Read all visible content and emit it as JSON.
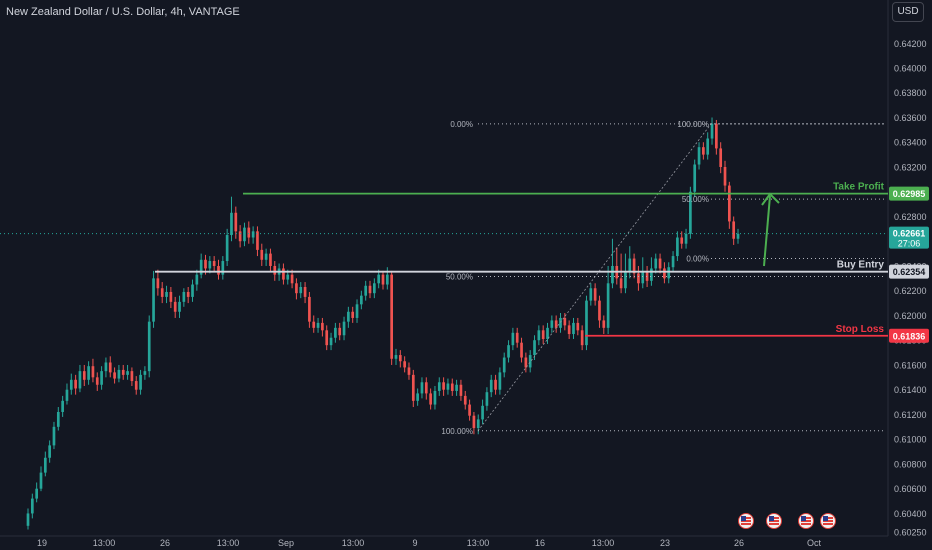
{
  "header": {
    "title": "New Zealand Dollar / U.S. Dollar, 4h, VANTAGE",
    "currency_button": "USD"
  },
  "chart_data": {
    "type": "candlestick",
    "title": "New Zealand Dollar / U.S. Dollar, 4h, VANTAGE",
    "ylim": [
      0.6025,
      0.6436
    ],
    "y_ticks": [
      "0.64200",
      "0.64000",
      "0.63800",
      "0.63600",
      "0.63400",
      "0.63200",
      "0.63000",
      "0.62800",
      "0.62600",
      "0.62400",
      "0.62200",
      "0.62000",
      "0.61800",
      "0.61600",
      "0.61400",
      "0.61200",
      "0.61000",
      "0.60800",
      "0.60600",
      "0.60400",
      "0.60250"
    ],
    "x_ticks": [
      "19",
      "13:00",
      "26",
      "13:00",
      "Sep",
      "13:00",
      "9",
      "13:00",
      "16",
      "13:00",
      "23",
      "13:00",
      "26",
      "Oct"
    ],
    "current_price": "0.62661",
    "countdown": "27:06",
    "levels": [
      {
        "name": "Take Profit",
        "price": "0.62985",
        "color": "#4caf50"
      },
      {
        "name": "Buy Entry",
        "price": "0.62354",
        "color": "#d1d4dc"
      },
      {
        "name": "Stop Loss",
        "price": "0.61836",
        "color": "#f23645"
      }
    ],
    "fib_retracements": [
      {
        "levels": [
          {
            "label": "100.00%",
            "price": 0.61068
          },
          {
            "label": "50.00%",
            "price": 0.62315
          },
          {
            "label": "0.00%",
            "price": 0.63548
          }
        ]
      },
      {
        "levels": [
          {
            "label": "100.00%",
            "price": 0.63548
          },
          {
            "label": "50.00%",
            "price": 0.6294
          },
          {
            "label": "0.00%",
            "price": 0.6246
          }
        ]
      }
    ],
    "candles": [
      [
        0.603,
        0.604,
        0.6027,
        0.6044
      ],
      [
        0.604,
        0.6052,
        0.6036,
        0.6056
      ],
      [
        0.6052,
        0.606,
        0.6049,
        0.6065
      ],
      [
        0.606,
        0.6073,
        0.6058,
        0.6078
      ],
      [
        0.6073,
        0.6085,
        0.607,
        0.609
      ],
      [
        0.6085,
        0.6095,
        0.6081,
        0.6099
      ],
      [
        0.6095,
        0.611,
        0.6092,
        0.6114
      ],
      [
        0.611,
        0.6122,
        0.6107,
        0.6126
      ],
      [
        0.6122,
        0.6131,
        0.6118,
        0.6135
      ],
      [
        0.6131,
        0.614,
        0.6128,
        0.6145
      ],
      [
        0.614,
        0.6148,
        0.6136,
        0.6153
      ],
      [
        0.6148,
        0.6141,
        0.6136,
        0.6152
      ],
      [
        0.6141,
        0.6155,
        0.6138,
        0.616
      ],
      [
        0.6155,
        0.6148,
        0.6143,
        0.616
      ],
      [
        0.6148,
        0.6159,
        0.6144,
        0.6163
      ],
      [
        0.6159,
        0.615,
        0.6146,
        0.6165
      ],
      [
        0.615,
        0.6144,
        0.6139,
        0.6154
      ],
      [
        0.6144,
        0.6155,
        0.614,
        0.6159
      ],
      [
        0.6155,
        0.6162,
        0.615,
        0.6166
      ],
      [
        0.6162,
        0.6154,
        0.615,
        0.6167
      ],
      [
        0.6154,
        0.6149,
        0.6145,
        0.6158
      ],
      [
        0.6149,
        0.6156,
        0.6146,
        0.616
      ],
      [
        0.6156,
        0.6152,
        0.6148,
        0.616
      ],
      [
        0.6152,
        0.6155,
        0.6148,
        0.616
      ],
      [
        0.6155,
        0.6147,
        0.6143,
        0.6158
      ],
      [
        0.6147,
        0.614,
        0.6136,
        0.6151
      ],
      [
        0.614,
        0.6152,
        0.6136,
        0.6156
      ],
      [
        0.6152,
        0.6155,
        0.6148,
        0.6159
      ],
      [
        0.6155,
        0.6195,
        0.615,
        0.62
      ],
      [
        0.6195,
        0.623,
        0.619,
        0.6236
      ],
      [
        0.623,
        0.6222,
        0.6216,
        0.6237
      ],
      [
        0.6222,
        0.6215,
        0.621,
        0.6227
      ],
      [
        0.6215,
        0.6219,
        0.621,
        0.6224
      ],
      [
        0.6219,
        0.6211,
        0.6206,
        0.6223
      ],
      [
        0.6211,
        0.6203,
        0.6198,
        0.6215
      ],
      [
        0.6203,
        0.6211,
        0.6198,
        0.6216
      ],
      [
        0.6211,
        0.6219,
        0.6207,
        0.6222
      ],
      [
        0.6219,
        0.6215,
        0.621,
        0.6223
      ],
      [
        0.6215,
        0.6225,
        0.6211,
        0.6229
      ],
      [
        0.6225,
        0.6233,
        0.622,
        0.6237
      ],
      [
        0.6233,
        0.6245,
        0.623,
        0.625
      ],
      [
        0.6245,
        0.6238,
        0.6233,
        0.6249
      ],
      [
        0.6238,
        0.6244,
        0.6234,
        0.6248
      ],
      [
        0.6244,
        0.624,
        0.6236,
        0.6248
      ],
      [
        0.624,
        0.6233,
        0.6229,
        0.6245
      ],
      [
        0.6233,
        0.6244,
        0.6229,
        0.6248
      ],
      [
        0.6244,
        0.6265,
        0.624,
        0.627
      ],
      [
        0.6265,
        0.6283,
        0.626,
        0.6296
      ],
      [
        0.6283,
        0.6268,
        0.6262,
        0.6288
      ],
      [
        0.6268,
        0.626,
        0.6255,
        0.6273
      ],
      [
        0.626,
        0.6271,
        0.6256,
        0.6275
      ],
      [
        0.6271,
        0.6263,
        0.6258,
        0.6276
      ],
      [
        0.6263,
        0.6268,
        0.6258,
        0.6272
      ],
      [
        0.6268,
        0.6253,
        0.6248,
        0.6272
      ],
      [
        0.6253,
        0.6245,
        0.624,
        0.6258
      ],
      [
        0.6245,
        0.625,
        0.624,
        0.6254
      ],
      [
        0.625,
        0.624,
        0.6235,
        0.6254
      ],
      [
        0.624,
        0.6233,
        0.6228,
        0.6244
      ],
      [
        0.6233,
        0.6238,
        0.6228,
        0.6242
      ],
      [
        0.6238,
        0.6229,
        0.6225,
        0.6242
      ],
      [
        0.6229,
        0.6233,
        0.6225,
        0.6237
      ],
      [
        0.6233,
        0.6226,
        0.6222,
        0.6237
      ],
      [
        0.6226,
        0.6218,
        0.6213,
        0.623
      ],
      [
        0.6218,
        0.6223,
        0.6214,
        0.6227
      ],
      [
        0.6223,
        0.6215,
        0.621,
        0.6227
      ],
      [
        0.6215,
        0.6195,
        0.619,
        0.6219
      ],
      [
        0.6195,
        0.619,
        0.6186,
        0.62
      ],
      [
        0.619,
        0.6194,
        0.6186,
        0.6198
      ],
      [
        0.6194,
        0.6188,
        0.6183,
        0.6198
      ],
      [
        0.6188,
        0.6176,
        0.6172,
        0.6192
      ],
      [
        0.6176,
        0.6182,
        0.6172,
        0.6186
      ],
      [
        0.6182,
        0.619,
        0.6178,
        0.6194
      ],
      [
        0.619,
        0.6184,
        0.618,
        0.6194
      ],
      [
        0.6184,
        0.6195,
        0.618,
        0.6199
      ],
      [
        0.6195,
        0.6203,
        0.619,
        0.6207
      ],
      [
        0.6203,
        0.6198,
        0.6194,
        0.6207
      ],
      [
        0.6198,
        0.6209,
        0.6194,
        0.6213
      ],
      [
        0.6209,
        0.6216,
        0.6205,
        0.622
      ],
      [
        0.6216,
        0.6224,
        0.6212,
        0.6228
      ],
      [
        0.6224,
        0.6218,
        0.6214,
        0.6228
      ],
      [
        0.6218,
        0.6226,
        0.6214,
        0.623
      ],
      [
        0.6226,
        0.6233,
        0.6222,
        0.6237
      ],
      [
        0.6233,
        0.6225,
        0.6221,
        0.6236
      ],
      [
        0.6225,
        0.6233,
        0.6221,
        0.6239
      ],
      [
        0.6233,
        0.6165,
        0.616,
        0.6236
      ],
      [
        0.6165,
        0.6168,
        0.616,
        0.6173
      ],
      [
        0.6168,
        0.6163,
        0.6158,
        0.6172
      ],
      [
        0.6163,
        0.6158,
        0.6154,
        0.6167
      ],
      [
        0.6158,
        0.6152,
        0.6148,
        0.6162
      ],
      [
        0.6152,
        0.6131,
        0.6126,
        0.6156
      ],
      [
        0.6131,
        0.6137,
        0.6127,
        0.6141
      ],
      [
        0.6137,
        0.6146,
        0.6133,
        0.615
      ],
      [
        0.6146,
        0.6137,
        0.6132,
        0.615
      ],
      [
        0.6137,
        0.6128,
        0.6124,
        0.6141
      ],
      [
        0.6128,
        0.6139,
        0.6124,
        0.6143
      ],
      [
        0.6139,
        0.6146,
        0.6135,
        0.615
      ],
      [
        0.6146,
        0.614,
        0.6135,
        0.615
      ],
      [
        0.614,
        0.6145,
        0.6136,
        0.6149
      ],
      [
        0.6145,
        0.6139,
        0.6135,
        0.6149
      ],
      [
        0.6139,
        0.6144,
        0.6135,
        0.6148
      ],
      [
        0.6144,
        0.6135,
        0.6131,
        0.6148
      ],
      [
        0.6135,
        0.6128,
        0.6124,
        0.6139
      ],
      [
        0.6128,
        0.6119,
        0.6115,
        0.6132
      ],
      [
        0.6119,
        0.6109,
        0.6104,
        0.6122
      ],
      [
        0.6109,
        0.6116,
        0.6104,
        0.612
      ],
      [
        0.6116,
        0.6127,
        0.6112,
        0.6132
      ],
      [
        0.6127,
        0.6138,
        0.6123,
        0.6142
      ],
      [
        0.6138,
        0.6148,
        0.6134,
        0.6152
      ],
      [
        0.6148,
        0.614,
        0.6136,
        0.6152
      ],
      [
        0.614,
        0.6154,
        0.6136,
        0.6158
      ],
      [
        0.6154,
        0.6166,
        0.615,
        0.617
      ],
      [
        0.6166,
        0.6176,
        0.6162,
        0.618
      ],
      [
        0.6176,
        0.6186,
        0.6172,
        0.619
      ],
      [
        0.6186,
        0.6178,
        0.6174,
        0.619
      ],
      [
        0.6178,
        0.6166,
        0.6162,
        0.6182
      ],
      [
        0.6166,
        0.6158,
        0.6154,
        0.617
      ],
      [
        0.6158,
        0.6168,
        0.6154,
        0.6172
      ],
      [
        0.6168,
        0.618,
        0.6164,
        0.6184
      ],
      [
        0.618,
        0.6188,
        0.6176,
        0.6192
      ],
      [
        0.6188,
        0.6181,
        0.6177,
        0.6192
      ],
      [
        0.6181,
        0.619,
        0.6177,
        0.6194
      ],
      [
        0.619,
        0.6196,
        0.6186,
        0.62
      ],
      [
        0.6196,
        0.619,
        0.6186,
        0.62
      ],
      [
        0.619,
        0.6198,
        0.6186,
        0.6202
      ],
      [
        0.6198,
        0.6192,
        0.6188,
        0.6202
      ],
      [
        0.6192,
        0.6185,
        0.6181,
        0.6196
      ],
      [
        0.6185,
        0.6194,
        0.6181,
        0.6198
      ],
      [
        0.6194,
        0.6188,
        0.6184,
        0.6198
      ],
      [
        0.6188,
        0.6176,
        0.6172,
        0.6192
      ],
      [
        0.6176,
        0.6212,
        0.6172,
        0.6216
      ],
      [
        0.6212,
        0.6222,
        0.6208,
        0.6226
      ],
      [
        0.6222,
        0.6212,
        0.6208,
        0.6226
      ],
      [
        0.6212,
        0.6196,
        0.619,
        0.6216
      ],
      [
        0.6196,
        0.619,
        0.6185,
        0.62
      ],
      [
        0.619,
        0.6226,
        0.6185,
        0.624
      ],
      [
        0.6226,
        0.624,
        0.6222,
        0.6262
      ],
      [
        0.624,
        0.623,
        0.6225,
        0.6255
      ],
      [
        0.623,
        0.6222,
        0.6218,
        0.625
      ],
      [
        0.6222,
        0.6235,
        0.6218,
        0.625
      ],
      [
        0.6235,
        0.6246,
        0.623,
        0.6256
      ],
      [
        0.6246,
        0.6234,
        0.623,
        0.625
      ],
      [
        0.6234,
        0.6226,
        0.622,
        0.624
      ],
      [
        0.6226,
        0.6235,
        0.6222,
        0.6247
      ],
      [
        0.6235,
        0.6228,
        0.6223,
        0.624
      ],
      [
        0.6228,
        0.6238,
        0.6224,
        0.6247
      ],
      [
        0.6238,
        0.6246,
        0.6234,
        0.625
      ],
      [
        0.6246,
        0.6238,
        0.6234,
        0.625
      ],
      [
        0.6238,
        0.623,
        0.6226,
        0.6243
      ],
      [
        0.623,
        0.6239,
        0.6226,
        0.6243
      ],
      [
        0.6239,
        0.6248,
        0.6235,
        0.6252
      ],
      [
        0.6248,
        0.6263,
        0.6244,
        0.6268
      ],
      [
        0.6263,
        0.6258,
        0.6254,
        0.6268
      ],
      [
        0.6258,
        0.6266,
        0.6254,
        0.627
      ],
      [
        0.6266,
        0.63,
        0.6262,
        0.6304
      ],
      [
        0.63,
        0.6322,
        0.6296,
        0.6326
      ],
      [
        0.6322,
        0.6336,
        0.6318,
        0.634
      ],
      [
        0.6336,
        0.633,
        0.6326,
        0.634
      ],
      [
        0.633,
        0.6343,
        0.6326,
        0.6348
      ],
      [
        0.6343,
        0.6355,
        0.6338,
        0.636
      ],
      [
        0.6355,
        0.6335,
        0.633,
        0.6358
      ],
      [
        0.6335,
        0.632,
        0.6315,
        0.634
      ],
      [
        0.632,
        0.6305,
        0.63,
        0.6325
      ],
      [
        0.6305,
        0.6276,
        0.627,
        0.6308
      ],
      [
        0.6276,
        0.6262,
        0.6257,
        0.628
      ],
      [
        0.6262,
        0.6266,
        0.6258,
        0.627
      ]
    ],
    "levels_note": ""
  },
  "events": {
    "icons": [
      "us-flag-event-icon",
      "us-flag-event-icon",
      "us-flag-event-icon",
      "us-flag-event-icon"
    ]
  }
}
